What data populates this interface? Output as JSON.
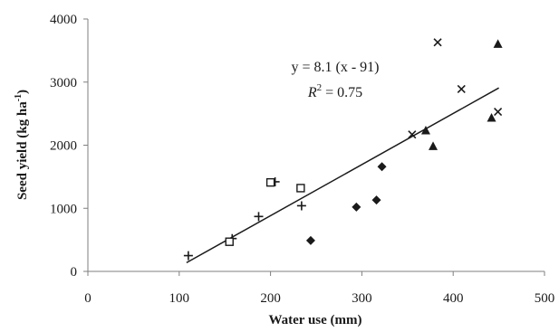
{
  "chart_data": {
    "type": "scatter",
    "xlabel": "Water use (mm)",
    "ylabel_main": "Seed yield (kg ha",
    "ylabel_sup": "-1",
    "ylabel_close": ")",
    "xlim": [
      0,
      500
    ],
    "ylim": [
      0,
      4000
    ],
    "x_ticks": [
      "0",
      "100",
      "200",
      "300",
      "400",
      "500"
    ],
    "y_ticks": [
      "0",
      "1000",
      "2000",
      "3000",
      "4000"
    ],
    "grid": false,
    "legend": "none",
    "series": [
      {
        "marker": "plus",
        "points": [
          [
            110,
            250
          ],
          [
            158,
            520
          ],
          [
            187,
            870
          ],
          [
            205,
            1420
          ],
          [
            234,
            1040
          ]
        ]
      },
      {
        "marker": "square",
        "points": [
          [
            155,
            470
          ],
          [
            200,
            1410
          ],
          [
            233,
            1320
          ]
        ]
      },
      {
        "marker": "diamond",
        "points": [
          [
            244,
            490
          ],
          [
            294,
            1020
          ],
          [
            316,
            1130
          ],
          [
            322,
            1660
          ]
        ]
      },
      {
        "marker": "x",
        "points": [
          [
            355,
            2170
          ],
          [
            383,
            3630
          ],
          [
            409,
            2890
          ],
          [
            449,
            2530
          ]
        ]
      },
      {
        "marker": "triangle",
        "points": [
          [
            370,
            2230
          ],
          [
            378,
            1980
          ],
          [
            442,
            2430
          ],
          [
            449,
            3600
          ]
        ]
      }
    ],
    "regression": {
      "slope": 8.1,
      "x0": 91,
      "x_range": [
        108,
        450
      ],
      "equation": "y = 8.1 (x - 91)",
      "r2_var": "R",
      "r2_sup": "2",
      "r2_rest": " = 0.75"
    },
    "colors": {
      "marks": "#1a1a1a",
      "axis": "#7f7f7f"
    }
  }
}
